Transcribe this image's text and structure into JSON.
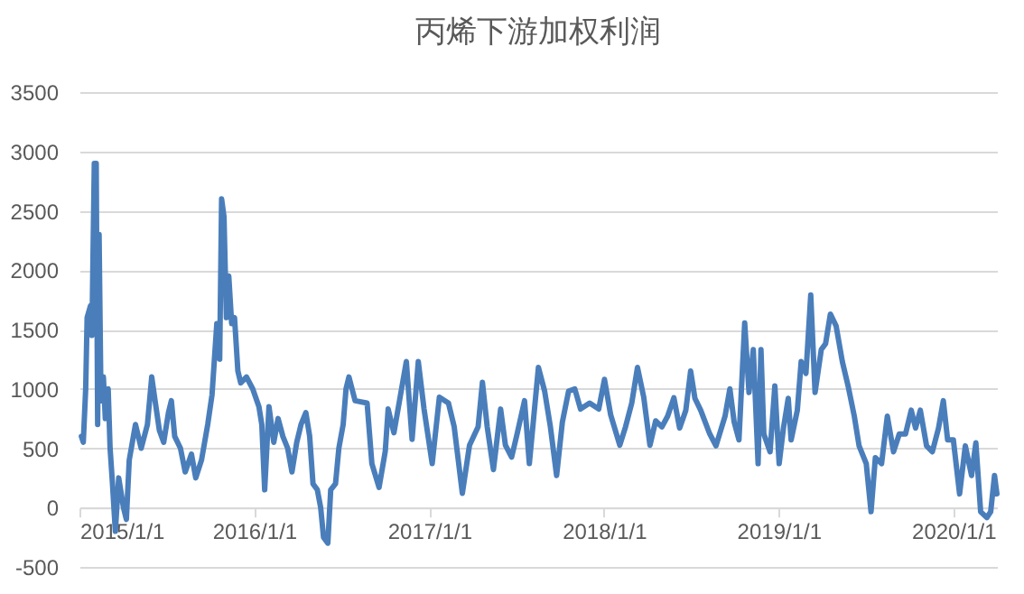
{
  "chart_data": {
    "type": "line",
    "title": "丙烯下游加权利润",
    "x": [
      "2015-01-05",
      "2015-01-09",
      "2015-01-14",
      "2015-01-17",
      "2015-01-24",
      "2015-01-27",
      "2015-02-01",
      "2015-02-05",
      "2015-02-08",
      "2015-02-11",
      "2015-02-15",
      "2015-02-20",
      "2015-02-24",
      "2015-03-02",
      "2015-03-06",
      "2015-03-11",
      "2015-03-17",
      "2015-03-24",
      "2015-04-03",
      "2015-04-09",
      "2015-04-15",
      "2015-04-28",
      "2015-05-10",
      "2015-05-23",
      "2015-06-01",
      "2015-06-08",
      "2015-06-17",
      "2015-06-26",
      "2015-07-06",
      "2015-07-12",
      "2015-07-19",
      "2015-07-31",
      "2015-08-10",
      "2015-08-23",
      "2015-09-01",
      "2015-09-13",
      "2015-09-26",
      "2015-10-05",
      "2015-10-15",
      "2015-10-21",
      "2015-10-25",
      "2015-10-30",
      "2015-11-04",
      "2015-11-09",
      "2015-11-15",
      "2015-11-21",
      "2015-11-28",
      "2015-12-04",
      "2015-12-16",
      "2015-12-29",
      "2016-01-11",
      "2016-01-17",
      "2016-01-23",
      "2016-02-01",
      "2016-02-11",
      "2016-02-20",
      "2016-03-01",
      "2016-03-11",
      "2016-03-20",
      "2016-03-30",
      "2016-04-08",
      "2016-04-18",
      "2016-04-26",
      "2016-05-03",
      "2016-05-12",
      "2016-05-19",
      "2016-05-25",
      "2016-06-03",
      "2016-06-09",
      "2016-06-19",
      "2016-06-26",
      "2016-07-05",
      "2016-07-11",
      "2016-07-17",
      "2016-07-30",
      "2016-08-24",
      "2016-09-03",
      "2016-09-18",
      "2016-10-01",
      "2016-10-07",
      "2016-10-19",
      "2016-11-01",
      "2016-11-14",
      "2016-11-26",
      "2016-12-09",
      "2016-12-21",
      "2017-01-07",
      "2017-01-22",
      "2017-02-10",
      "2017-02-22",
      "2017-03-11",
      "2017-03-26",
      "2017-04-13",
      "2017-04-22",
      "2017-05-02",
      "2017-05-15",
      "2017-05-30",
      "2017-06-09",
      "2017-06-22",
      "2017-07-04",
      "2017-07-19",
      "2017-07-29",
      "2017-08-17",
      "2017-08-30",
      "2017-09-11",
      "2017-09-24",
      "2017-10-06",
      "2017-10-19",
      "2017-11-01",
      "2017-11-13",
      "2017-12-02",
      "2017-12-21",
      "2018-01-02",
      "2018-01-15",
      "2018-02-03",
      "2018-02-15",
      "2018-02-28",
      "2018-03-12",
      "2018-03-25",
      "2018-04-07",
      "2018-04-19",
      "2018-05-02",
      "2018-05-14",
      "2018-05-27",
      "2018-06-08",
      "2018-06-21",
      "2018-07-01",
      "2018-07-10",
      "2018-07-22",
      "2018-08-10",
      "2018-08-23",
      "2018-09-11",
      "2018-09-21",
      "2018-09-30",
      "2018-10-10",
      "2018-10-22",
      "2018-10-31",
      "2018-11-09",
      "2018-11-19",
      "2018-11-25",
      "2018-12-01",
      "2018-12-14",
      "2018-12-24",
      "2019-01-02",
      "2019-01-11",
      "2019-01-21",
      "2019-01-27",
      "2019-02-09",
      "2019-02-17",
      "2019-02-27",
      "2019-03-09",
      "2019-03-18",
      "2019-03-31",
      "2019-04-09",
      "2019-04-19",
      "2019-05-01",
      "2019-05-14",
      "2019-05-26",
      "2019-06-08",
      "2019-06-18",
      "2019-07-03",
      "2019-07-13",
      "2019-07-22",
      "2019-08-04",
      "2019-08-16",
      "2019-08-29",
      "2019-09-10",
      "2019-09-23",
      "2019-10-05",
      "2019-10-14",
      "2019-10-24",
      "2019-11-06",
      "2019-11-18",
      "2019-12-01",
      "2019-12-11",
      "2019-12-20",
      "2020-01-01",
      "2020-01-14",
      "2020-01-26",
      "2020-02-08",
      "2020-02-17",
      "2020-02-27",
      "2020-03-11",
      "2020-03-19",
      "2020-03-27",
      "2020-04-01"
    ],
    "series": [
      {
        "color": "#4a7ebb",
        "values": [
          600,
          550,
          1000,
          1600,
          1700,
          1450,
          2900,
          2900,
          700,
          2300,
          900,
          1100,
          750,
          1000,
          500,
          200,
          -200,
          250,
          0,
          -100,
          400,
          700,
          500,
          700,
          1100,
          900,
          650,
          550,
          800,
          900,
          600,
          500,
          300,
          450,
          250,
          400,
          700,
          950,
          1550,
          1250,
          2600,
          2450,
          1600,
          1950,
          1550,
          1600,
          1150,
          1050,
          1100,
          1000,
          850,
          700,
          150,
          850,
          550,
          750,
          600,
          500,
          300,
          550,
          700,
          800,
          600,
          200,
          150,
          0,
          -250,
          -300,
          150,
          200,
          500,
          700,
          1000,
          1100,
          900,
          880,
          370,
          170,
          475,
          830,
          630,
          930,
          1230,
          575,
          1230,
          830,
          370,
          930,
          880,
          680,
          120,
          525,
          680,
          1055,
          680,
          320,
          830,
          525,
          425,
          630,
          900,
          370,
          1180,
          980,
          680,
          270,
          720,
          980,
          1000,
          830,
          880,
          830,
          1080,
          780,
          525,
          680,
          880,
          1180,
          930,
          525,
          730,
          680,
          770,
          925,
          670,
          820,
          1150,
          920,
          820,
          620,
          520,
          770,
          1000,
          720,
          570,
          1555,
          970,
          1330,
          370,
          1330,
          620,
          470,
          1025,
          370,
          670,
          920,
          570,
          820,
          1230,
          1130,
          1790,
          970,
          1330,
          1380,
          1630,
          1530,
          1230,
          1025,
          770,
          520,
          370,
          -35,
          420,
          370,
          770,
          470,
          620,
          620,
          820,
          670,
          820,
          520,
          470,
          670,
          900,
          570,
          570,
          115,
          520,
          270,
          545,
          -35,
          -85,
          -35,
          270,
          115
        ]
      }
    ],
    "xlim": [
      "2015-01-01",
      "2020-04-01"
    ],
    "xticks": [
      {
        "value": "2015-01-01",
        "label": "2015/1/1"
      },
      {
        "value": "2016-01-01",
        "label": "2016/1/1"
      },
      {
        "value": "2017-01-01",
        "label": "2017/1/1"
      },
      {
        "value": "2018-01-01",
        "label": "2018/1/1"
      },
      {
        "value": "2019-01-01",
        "label": "2019/1/1"
      },
      {
        "value": "2020-01-01",
        "label": "2020/1/1"
      }
    ],
    "ylim": [
      -500,
      3500
    ],
    "yticks": [
      -500,
      0,
      500,
      1000,
      1500,
      2000,
      2500,
      3000,
      3500
    ],
    "grid": "y",
    "line_style": "solid",
    "marker": "none"
  }
}
